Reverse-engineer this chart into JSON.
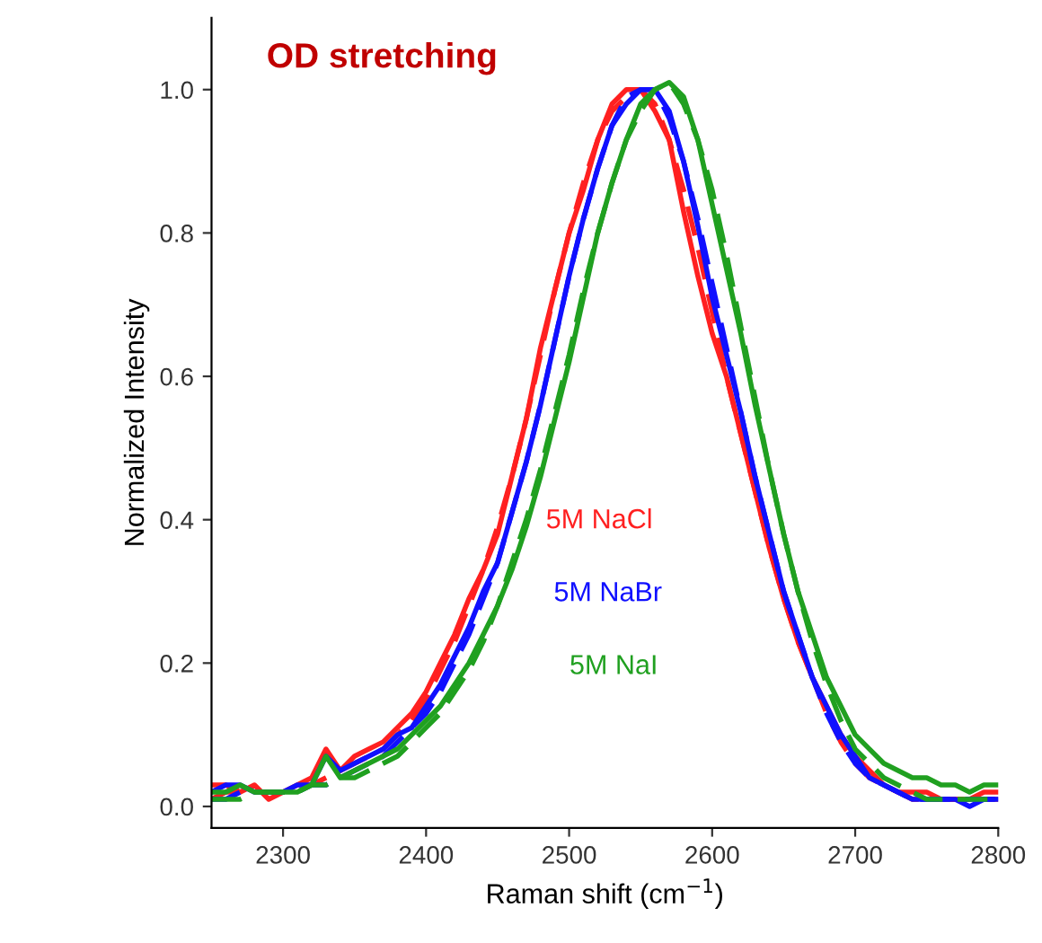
{
  "chart_data": {
    "type": "line",
    "title": "OD stretching",
    "xlabel": "Raman shift (cm$^{−1}$)",
    "ylabel": "Normalized Intensity",
    "x": [
      2250,
      2260,
      2270,
      2280,
      2290,
      2300,
      2310,
      2320,
      2330,
      2340,
      2350,
      2360,
      2370,
      2380,
      2390,
      2400,
      2410,
      2420,
      2430,
      2440,
      2450,
      2460,
      2470,
      2480,
      2490,
      2500,
      2510,
      2520,
      2530,
      2540,
      2550,
      2560,
      2570,
      2580,
      2590,
      2600,
      2610,
      2620,
      2630,
      2640,
      2650,
      2660,
      2670,
      2680,
      2690,
      2700,
      2710,
      2720,
      2730,
      2740,
      2750,
      2760,
      2770,
      2780,
      2790,
      2800
    ],
    "xlim": [
      2250,
      2800
    ],
    "ylim": [
      -0.03,
      1.1
    ],
    "xticks": [
      2300,
      2400,
      2500,
      2600,
      2700,
      2800
    ],
    "yticks": [
      {
        "value": 0,
        "label": "0.0"
      },
      {
        "value": 0.2,
        "label": "0.2"
      },
      {
        "value": 0.4,
        "label": "0.4"
      },
      {
        "value": 0.6,
        "label": "0.6"
      },
      {
        "value": 0.8,
        "label": "0.8"
      },
      {
        "value": 1.0,
        "label": "1.0"
      }
    ],
    "series": [
      {
        "name": "5M NaCl",
        "color": "#ff2020",
        "line_style": "solid",
        "values": [
          0.03,
          0.03,
          0.02,
          0.03,
          0.01,
          0.02,
          0.03,
          0.04,
          0.08,
          0.05,
          0.07,
          0.08,
          0.09,
          0.11,
          0.13,
          0.16,
          0.2,
          0.24,
          0.29,
          0.33,
          0.38,
          0.46,
          0.54,
          0.64,
          0.72,
          0.8,
          0.86,
          0.93,
          0.98,
          1.0,
          1.0,
          0.97,
          0.93,
          0.83,
          0.74,
          0.66,
          0.6,
          0.52,
          0.44,
          0.36,
          0.29,
          0.23,
          0.18,
          0.14,
          0.1,
          0.07,
          0.05,
          0.03,
          0.02,
          0.02,
          0.02,
          0.01,
          0.01,
          0.01,
          0.02,
          0.02
        ]
      },
      {
        "color": "#ff2020",
        "line_style": "dashed",
        "values": [
          0.01,
          0.02,
          0.02,
          0.02,
          0.02,
          0.02,
          0.03,
          0.03,
          0.04,
          0.05,
          0.06,
          0.07,
          0.08,
          0.1,
          0.12,
          0.15,
          0.19,
          0.23,
          0.28,
          0.33,
          0.39,
          0.46,
          0.54,
          0.63,
          0.72,
          0.8,
          0.87,
          0.93,
          0.97,
          0.99,
          1.0,
          0.98,
          0.93,
          0.86,
          0.78,
          0.69,
          0.6,
          0.52,
          0.44,
          0.36,
          0.29,
          0.23,
          0.18,
          0.13,
          0.09,
          0.06,
          0.04,
          0.03,
          0.02,
          0.01,
          0.01,
          0.01,
          0.01,
          0.01,
          0.01,
          0.01
        ]
      },
      {
        "name": "5M NaBr",
        "color": "#1010ff",
        "line_style": "solid",
        "values": [
          0.02,
          0.03,
          0.03,
          0.02,
          0.02,
          0.02,
          0.03,
          0.03,
          0.07,
          0.05,
          0.06,
          0.07,
          0.08,
          0.1,
          0.11,
          0.14,
          0.17,
          0.21,
          0.25,
          0.3,
          0.34,
          0.41,
          0.48,
          0.56,
          0.65,
          0.74,
          0.82,
          0.89,
          0.95,
          0.98,
          1.0,
          1.0,
          0.97,
          0.9,
          0.81,
          0.71,
          0.63,
          0.55,
          0.46,
          0.38,
          0.3,
          0.24,
          0.18,
          0.14,
          0.1,
          0.07,
          0.04,
          0.03,
          0.02,
          0.01,
          0.01,
          0.01,
          0.01,
          0.0,
          0.01,
          0.01
        ]
      },
      {
        "color": "#1010ff",
        "line_style": "dashed",
        "values": [
          0.01,
          0.01,
          0.02,
          0.02,
          0.02,
          0.02,
          0.02,
          0.03,
          0.03,
          0.04,
          0.05,
          0.06,
          0.07,
          0.09,
          0.11,
          0.13,
          0.16,
          0.2,
          0.24,
          0.29,
          0.34,
          0.41,
          0.48,
          0.56,
          0.65,
          0.74,
          0.82,
          0.89,
          0.95,
          0.99,
          1.0,
          1.0,
          0.96,
          0.9,
          0.82,
          0.73,
          0.64,
          0.55,
          0.46,
          0.38,
          0.3,
          0.24,
          0.18,
          0.13,
          0.09,
          0.06,
          0.04,
          0.03,
          0.02,
          0.01,
          0.01,
          0.01,
          0.01,
          0.01,
          0.01,
          0.01
        ]
      },
      {
        "name": "5M NaI",
        "color": "#20a020",
        "line_style": "solid",
        "values": [
          0.02,
          0.02,
          0.03,
          0.02,
          0.02,
          0.02,
          0.02,
          0.03,
          0.07,
          0.04,
          0.05,
          0.06,
          0.07,
          0.08,
          0.1,
          0.12,
          0.14,
          0.17,
          0.2,
          0.24,
          0.28,
          0.33,
          0.39,
          0.46,
          0.54,
          0.62,
          0.71,
          0.8,
          0.87,
          0.93,
          0.98,
          1.0,
          1.01,
          0.99,
          0.93,
          0.84,
          0.75,
          0.66,
          0.56,
          0.47,
          0.38,
          0.3,
          0.24,
          0.18,
          0.14,
          0.1,
          0.08,
          0.06,
          0.05,
          0.04,
          0.04,
          0.03,
          0.03,
          0.02,
          0.03,
          0.03
        ]
      },
      {
        "color": "#20a020",
        "line_style": "dashed",
        "values": [
          0.01,
          0.01,
          0.01,
          0.02,
          0.02,
          0.02,
          0.02,
          0.03,
          0.03,
          0.04,
          0.04,
          0.05,
          0.06,
          0.07,
          0.09,
          0.11,
          0.13,
          0.16,
          0.19,
          0.23,
          0.28,
          0.34,
          0.4,
          0.47,
          0.55,
          0.63,
          0.72,
          0.8,
          0.87,
          0.93,
          0.97,
          1.0,
          1.01,
          0.98,
          0.93,
          0.86,
          0.77,
          0.67,
          0.57,
          0.47,
          0.38,
          0.3,
          0.23,
          0.17,
          0.12,
          0.08,
          0.06,
          0.04,
          0.03,
          0.02,
          0.01,
          0.01,
          0.01,
          0.01,
          0.01,
          0.01
        ]
      }
    ]
  }
}
